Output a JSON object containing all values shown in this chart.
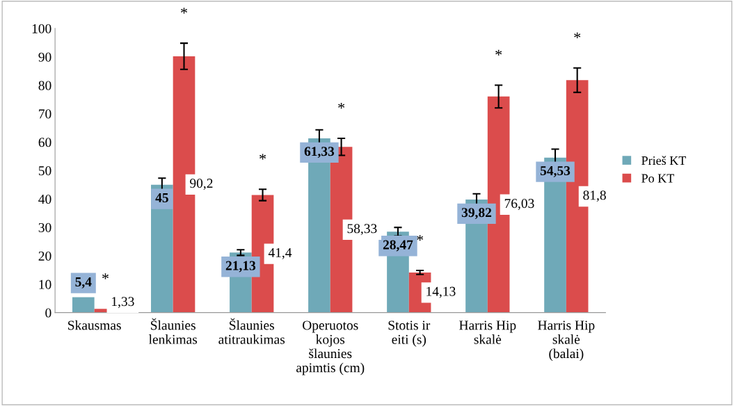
{
  "chart_data": {
    "type": "bar",
    "categories": [
      "Skausmas",
      "Šlaunies lenkimas",
      "Šlaunies atitraukimas",
      "Operuotos kojos šlaunies apimtis (cm)",
      "Stotis ir eiti (s)",
      "Harris Hip skalė",
      "Harris Hip skalė (balai)"
    ],
    "series": [
      {
        "name": "Prieš KT",
        "color": "#6fa9b8",
        "values": [
          5.4,
          45,
          21.13,
          61.33,
          28.47,
          39.82,
          54.53
        ],
        "errors": [
          null,
          2.3,
          1,
          3,
          1.5,
          2,
          3
        ],
        "value_labels": [
          "5,4",
          "45",
          "21,13",
          "61,33",
          "28,47",
          "39,82",
          "54,53"
        ]
      },
      {
        "name": "Po KT",
        "color": "#db4c4c",
        "values": [
          1.33,
          90.2,
          41.4,
          58.33,
          14.13,
          76.03,
          81.8
        ],
        "errors": [
          null,
          4.6,
          2,
          3,
          0.7,
          4,
          4.3
        ],
        "value_labels": [
          "1,33",
          "90,2",
          "41,4",
          "58,33",
          "14,13",
          "76,03",
          "81,8"
        ]
      }
    ],
    "annotations": [
      "*",
      "*",
      "*",
      "*",
      "*",
      "*",
      "*"
    ],
    "ylim": [
      0,
      100
    ],
    "yticks": [
      0,
      10,
      20,
      30,
      40,
      50,
      60,
      70,
      80,
      90,
      100
    ],
    "grid": false,
    "legend": "right"
  }
}
